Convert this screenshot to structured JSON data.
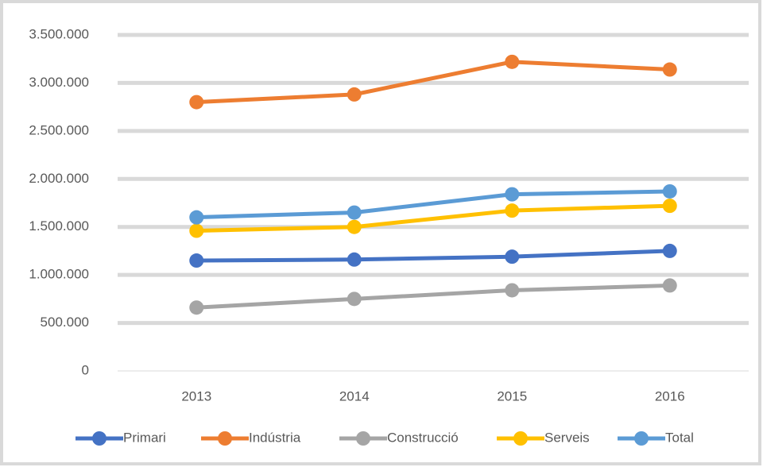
{
  "chart_data": {
    "type": "line",
    "categories": [
      "2013",
      "2014",
      "2015",
      "2016"
    ],
    "series": [
      {
        "name": "Primari",
        "color": "#4472c4",
        "values": [
          1150000,
          1160000,
          1190000,
          1250000
        ]
      },
      {
        "name": "Indústria",
        "color": "#ed7d31",
        "values": [
          2800000,
          2880000,
          3220000,
          3140000
        ]
      },
      {
        "name": "Construcció",
        "color": "#a5a5a5",
        "values": [
          660000,
          750000,
          840000,
          890000
        ]
      },
      {
        "name": "Serveis",
        "color": "#ffc000",
        "values": [
          1460000,
          1500000,
          1670000,
          1720000
        ]
      },
      {
        "name": "Total",
        "color": "#5b9bd5",
        "values": [
          1600000,
          1650000,
          1840000,
          1870000
        ]
      }
    ],
    "ylim": [
      0,
      3500000
    ],
    "yticks": [
      0,
      {
        "value": 500000,
        "label": "500.000"
      },
      {
        "value": 1000000,
        "label": "1.000.000"
      },
      {
        "value": 1500000,
        "label": "1.500.000"
      },
      {
        "value": 2000000,
        "label": "2.000.000"
      },
      {
        "value": 2500000,
        "label": "2.500.000"
      },
      {
        "value": 3000000,
        "label": "3.000.000"
      },
      {
        "value": 3500000,
        "label": "3.500.000"
      }
    ],
    "grid": true,
    "legend": "bottom"
  }
}
